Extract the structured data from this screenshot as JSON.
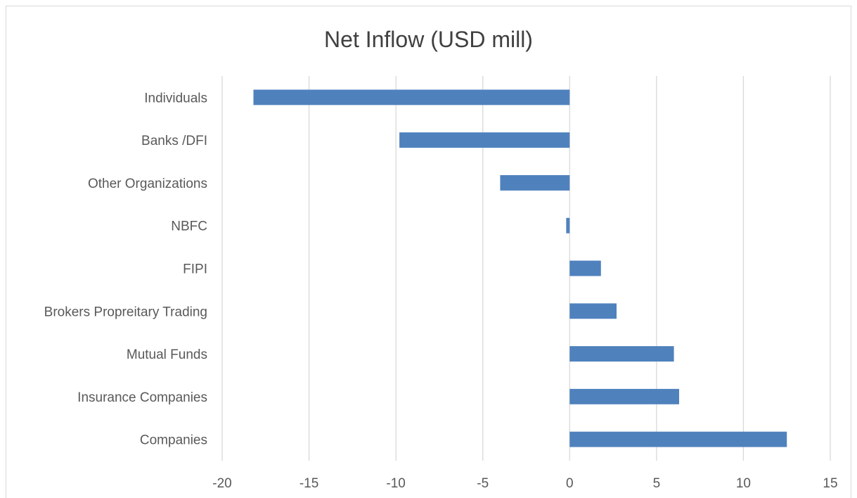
{
  "chart_data": {
    "type": "bar",
    "orientation": "horizontal",
    "title": "Net Inflow (USD mill)",
    "categories": [
      "Individuals",
      "Banks /DFI",
      "Other Organizations",
      "NBFC",
      "FIPI",
      "Brokers Propreitary Trading",
      "Mutual Funds",
      "Insurance Companies",
      "Companies"
    ],
    "values": [
      -18.2,
      -9.8,
      -4.0,
      -0.2,
      1.8,
      2.7,
      6.0,
      6.3,
      12.5
    ],
    "xlim": [
      -20,
      15
    ],
    "xticks": [
      "-20",
      "-15",
      "-10",
      "-5",
      "0",
      "5",
      "10",
      "15"
    ],
    "xticks_values": [
      -20,
      -15,
      -10,
      -5,
      0,
      5,
      10,
      15
    ],
    "xlabel": "",
    "ylabel": "",
    "grid": "vertical",
    "legend": "none",
    "bar_color": "#4f81bd",
    "grid_color": "#d9d9d9"
  }
}
